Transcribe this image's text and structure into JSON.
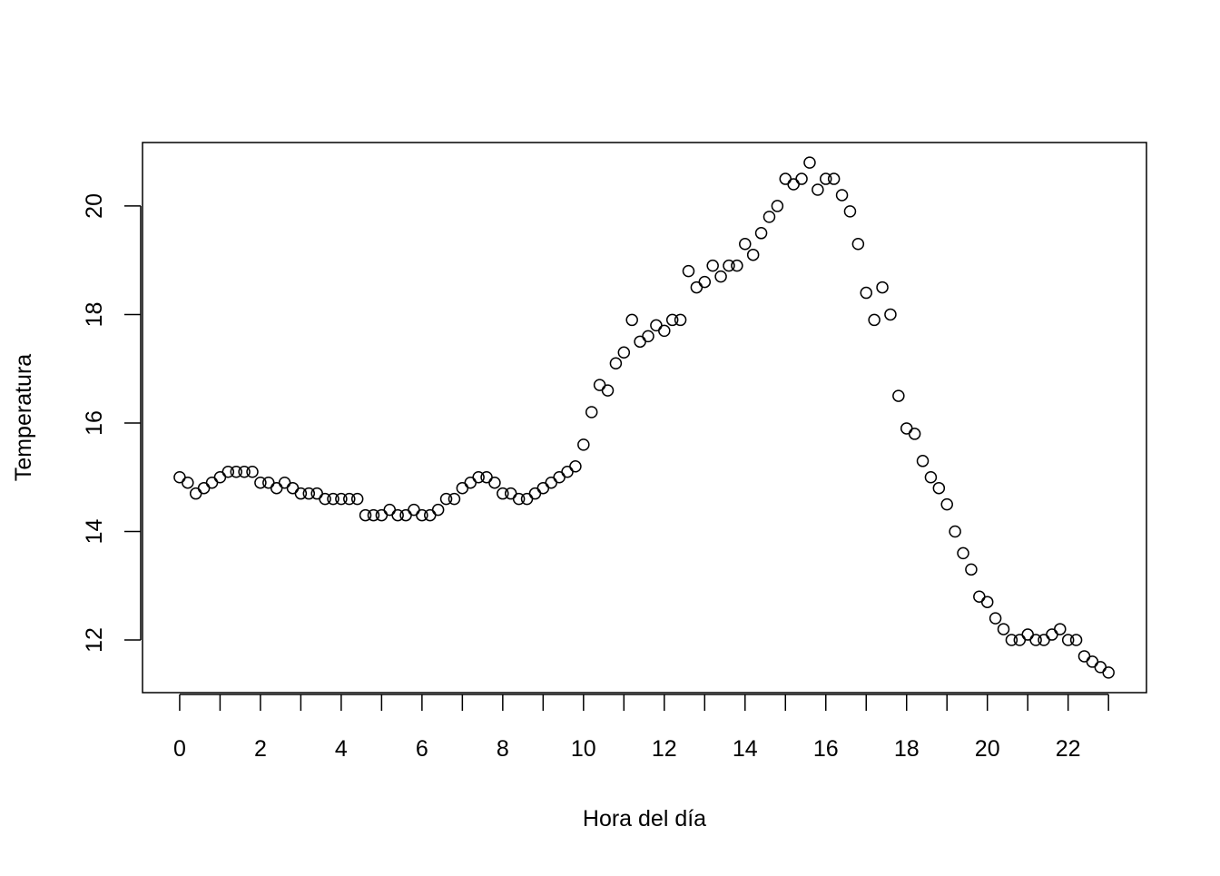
{
  "chart_data": {
    "type": "scatter",
    "xlabel": "Hora del día",
    "ylabel": "Temperatura",
    "x": [
      0,
      0.2,
      0.4,
      0.6,
      0.8,
      1,
      1.2,
      1.4,
      1.6,
      1.8,
      2,
      2.2,
      2.4,
      2.6,
      2.8,
      3,
      3.2,
      3.4,
      3.6,
      3.8,
      4,
      4.2,
      4.4,
      4.6,
      4.8,
      5,
      5.2,
      5.4,
      5.6,
      5.8,
      6,
      6.2,
      6.4,
      6.6,
      6.8,
      7,
      7.2,
      7.4,
      7.6,
      7.8,
      8,
      8.2,
      8.4,
      8.6,
      8.8,
      9,
      9.2,
      9.4,
      9.6,
      9.8,
      10,
      10.2,
      10.4,
      10.6,
      10.8,
      11,
      11.2,
      11.4,
      11.6,
      11.8,
      12,
      12.2,
      12.4,
      12.6,
      12.8,
      13,
      13.2,
      13.4,
      13.6,
      13.8,
      14,
      14.2,
      14.4,
      14.6,
      14.8,
      15,
      15.2,
      15.4,
      15.6,
      15.8,
      16,
      16.2,
      16.4,
      16.6,
      16.8,
      17,
      17.2,
      17.4,
      17.6,
      17.8,
      18,
      18.2,
      18.4,
      18.6,
      18.8,
      19,
      19.2,
      19.4,
      19.6,
      19.8,
      20,
      20.2,
      20.4,
      20.6,
      20.8,
      21,
      21.2,
      21.4,
      21.6,
      21.8,
      22,
      22.2,
      22.4,
      22.6,
      22.8,
      23
    ],
    "values": [
      15.0,
      14.9,
      14.7,
      14.8,
      14.9,
      15.0,
      15.1,
      15.1,
      15.1,
      15.1,
      14.9,
      14.9,
      14.8,
      14.9,
      14.8,
      14.7,
      14.7,
      14.7,
      14.6,
      14.6,
      14.6,
      14.6,
      14.6,
      14.3,
      14.3,
      14.3,
      14.4,
      14.3,
      14.3,
      14.4,
      14.3,
      14.3,
      14.4,
      14.6,
      14.6,
      14.8,
      14.9,
      15.0,
      15.0,
      14.9,
      14.7,
      14.7,
      14.6,
      14.6,
      14.7,
      14.8,
      14.9,
      15.0,
      15.1,
      15.2,
      15.6,
      16.2,
      16.7,
      16.6,
      17.1,
      17.3,
      17.9,
      17.5,
      17.6,
      17.8,
      17.7,
      17.9,
      17.9,
      18.8,
      18.5,
      18.6,
      18.9,
      18.7,
      18.9,
      18.9,
      19.3,
      19.1,
      19.5,
      19.8,
      20.0,
      20.5,
      20.4,
      20.5,
      20.8,
      20.3,
      20.5,
      20.5,
      20.2,
      19.9,
      19.3,
      18.4,
      17.9,
      18.5,
      18.0,
      16.5,
      15.9,
      15.8,
      15.3,
      15.0,
      14.8,
      14.5,
      14.0,
      13.6,
      13.3,
      12.8,
      12.7,
      12.4,
      12.2,
      12.0,
      12.0,
      12.1,
      12.0,
      12.0,
      12.1,
      12.2,
      12.0,
      12.0,
      11.7,
      11.6,
      11.5,
      11.4
    ],
    "color": "#000000",
    "xlim": [
      -0.92,
      23.94
    ],
    "ylim": [
      11.03,
      21.17
    ],
    "xticks": [
      0,
      2,
      4,
      6,
      8,
      10,
      12,
      14,
      16,
      18,
      20,
      22
    ],
    "xminorticks": [
      1,
      3,
      5,
      7,
      9,
      11,
      13,
      15,
      17,
      19,
      21,
      23
    ],
    "yticks": [
      12,
      14,
      16,
      18,
      20
    ]
  }
}
